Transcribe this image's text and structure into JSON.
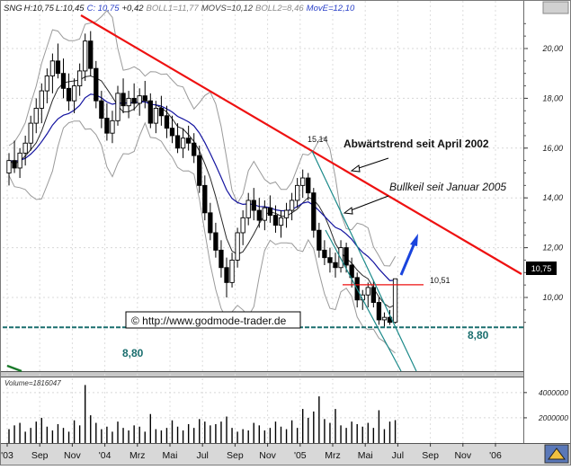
{
  "header": {
    "symbol": "SNG",
    "high_label": "H:10,75",
    "low_label": "L:10,45",
    "close_label": "C: 10,75",
    "change_label": "+0,42",
    "boll1_label": "BOLL1=11,77",
    "movs_label": "MOVS=10,12",
    "boll2_label": "BOLL2=8,46",
    "move_label": "MovE=12,10"
  },
  "colors": {
    "candle_body": "#000000",
    "bollinger": "#9a9a9a",
    "movs": "#2a2a2a",
    "move": "#1414a0",
    "trendline": "#ee1111",
    "bullwedge": "#1c8a8a",
    "resistance": "#ee1111",
    "support": "#1a6e6e",
    "arrow": "#1a44dd"
  },
  "chart_data": [
    {
      "type": "candlestick",
      "title": "",
      "x_ticks": [
        "'03",
        "Sep",
        "Nov",
        "'04",
        "Mrz",
        "Mai",
        "Jul",
        "Sep",
        "Nov",
        "'05",
        "Mrz",
        "Mai",
        "Jul",
        "Sep",
        "Nov",
        "'06"
      ],
      "y_ticks": [
        "20,00",
        "18,00",
        "16,00",
        "14,00",
        "12,00",
        "10,00"
      ],
      "ylim": [
        8.4,
        21.0
      ],
      "last_price_label": "10,75",
      "annotations": {
        "high_label": "15,14",
        "resistance_label": "10,51",
        "support_label_left": "8,80",
        "support_label_right": "8,80",
        "trend_label": "Abwärtstrend seit April 2002",
        "wedge_label": "Bullkeil seit Januar 2005",
        "source_label": "© http://www.godmode-trader.de"
      },
      "support_level": 8.8,
      "resistance_level": 10.51,
      "candles": [
        {
          "o": 15.0,
          "h": 15.8,
          "l": 14.5,
          "c": 15.5
        },
        {
          "o": 15.5,
          "h": 16.3,
          "l": 15.0,
          "c": 15.2
        },
        {
          "o": 15.2,
          "h": 16.0,
          "l": 14.8,
          "c": 15.8
        },
        {
          "o": 15.8,
          "h": 16.5,
          "l": 15.3,
          "c": 16.2
        },
        {
          "o": 16.2,
          "h": 17.3,
          "l": 15.9,
          "c": 17.0
        },
        {
          "o": 17.0,
          "h": 18.0,
          "l": 16.6,
          "c": 17.6
        },
        {
          "o": 17.6,
          "h": 18.6,
          "l": 17.0,
          "c": 18.3
        },
        {
          "o": 18.3,
          "h": 19.2,
          "l": 17.8,
          "c": 18.9
        },
        {
          "o": 18.9,
          "h": 19.8,
          "l": 18.2,
          "c": 19.5
        },
        {
          "o": 19.5,
          "h": 20.2,
          "l": 18.8,
          "c": 19.0
        },
        {
          "o": 19.0,
          "h": 19.6,
          "l": 18.0,
          "c": 18.4
        },
        {
          "o": 18.4,
          "h": 19.0,
          "l": 17.5,
          "c": 17.9
        },
        {
          "o": 17.9,
          "h": 18.8,
          "l": 17.4,
          "c": 18.5
        },
        {
          "o": 18.5,
          "h": 19.4,
          "l": 18.1,
          "c": 19.1
        },
        {
          "o": 19.1,
          "h": 20.6,
          "l": 18.7,
          "c": 20.3
        },
        {
          "o": 20.3,
          "h": 20.7,
          "l": 18.9,
          "c": 19.2
        },
        {
          "o": 19.2,
          "h": 19.5,
          "l": 17.6,
          "c": 17.9
        },
        {
          "o": 17.9,
          "h": 18.3,
          "l": 16.8,
          "c": 17.2
        },
        {
          "o": 17.2,
          "h": 17.8,
          "l": 16.3,
          "c": 16.6
        },
        {
          "o": 16.6,
          "h": 17.5,
          "l": 16.2,
          "c": 17.1
        },
        {
          "o": 17.1,
          "h": 18.5,
          "l": 16.9,
          "c": 18.2
        },
        {
          "o": 18.2,
          "h": 18.8,
          "l": 17.4,
          "c": 17.7
        },
        {
          "o": 17.7,
          "h": 18.3,
          "l": 17.2,
          "c": 18.0
        },
        {
          "o": 18.0,
          "h": 18.6,
          "l": 17.5,
          "c": 17.8
        },
        {
          "o": 17.8,
          "h": 18.4,
          "l": 17.3,
          "c": 18.1
        },
        {
          "o": 18.1,
          "h": 18.7,
          "l": 17.6,
          "c": 17.9
        },
        {
          "o": 17.9,
          "h": 18.2,
          "l": 16.8,
          "c": 17.0
        },
        {
          "o": 17.0,
          "h": 17.9,
          "l": 16.6,
          "c": 17.6
        },
        {
          "o": 17.6,
          "h": 18.1,
          "l": 16.9,
          "c": 17.3
        },
        {
          "o": 17.3,
          "h": 17.7,
          "l": 16.4,
          "c": 16.8
        },
        {
          "o": 16.8,
          "h": 17.3,
          "l": 16.2,
          "c": 16.5
        },
        {
          "o": 16.5,
          "h": 17.0,
          "l": 15.8,
          "c": 16.0
        },
        {
          "o": 16.0,
          "h": 16.8,
          "l": 15.6,
          "c": 16.4
        },
        {
          "o": 16.4,
          "h": 16.9,
          "l": 15.9,
          "c": 16.2
        },
        {
          "o": 16.2,
          "h": 16.6,
          "l": 15.4,
          "c": 15.7
        },
        {
          "o": 15.7,
          "h": 16.1,
          "l": 14.2,
          "c": 14.5
        },
        {
          "o": 14.5,
          "h": 14.9,
          "l": 13.1,
          "c": 13.4
        },
        {
          "o": 13.4,
          "h": 13.8,
          "l": 12.3,
          "c": 12.6
        },
        {
          "o": 12.6,
          "h": 13.0,
          "l": 11.6,
          "c": 11.9
        },
        {
          "o": 11.9,
          "h": 12.3,
          "l": 10.8,
          "c": 11.2
        },
        {
          "o": 11.2,
          "h": 11.6,
          "l": 10.0,
          "c": 10.6
        },
        {
          "o": 10.6,
          "h": 11.8,
          "l": 10.4,
          "c": 11.5
        },
        {
          "o": 11.5,
          "h": 12.8,
          "l": 11.2,
          "c": 12.6
        },
        {
          "o": 12.6,
          "h": 13.5,
          "l": 12.1,
          "c": 13.2
        },
        {
          "o": 13.2,
          "h": 14.2,
          "l": 12.9,
          "c": 13.9
        },
        {
          "o": 13.9,
          "h": 14.4,
          "l": 13.1,
          "c": 13.5
        },
        {
          "o": 13.5,
          "h": 14.0,
          "l": 12.8,
          "c": 13.1
        },
        {
          "o": 13.1,
          "h": 13.9,
          "l": 12.7,
          "c": 13.6
        },
        {
          "o": 13.6,
          "h": 14.1,
          "l": 13.0,
          "c": 13.3
        },
        {
          "o": 13.3,
          "h": 13.7,
          "l": 12.6,
          "c": 12.9
        },
        {
          "o": 12.9,
          "h": 13.5,
          "l": 12.4,
          "c": 13.2
        },
        {
          "o": 13.2,
          "h": 13.8,
          "l": 12.8,
          "c": 13.5
        },
        {
          "o": 13.5,
          "h": 14.2,
          "l": 13.1,
          "c": 13.9
        },
        {
          "o": 13.9,
          "h": 14.8,
          "l": 13.6,
          "c": 14.5
        },
        {
          "o": 14.5,
          "h": 15.14,
          "l": 14.0,
          "c": 14.8
        },
        {
          "o": 14.8,
          "h": 15.0,
          "l": 13.9,
          "c": 14.2
        },
        {
          "o": 14.2,
          "h": 14.4,
          "l": 12.4,
          "c": 12.7
        },
        {
          "o": 12.7,
          "h": 13.0,
          "l": 11.6,
          "c": 11.9
        },
        {
          "o": 11.9,
          "h": 12.3,
          "l": 11.3,
          "c": 11.6
        },
        {
          "o": 11.6,
          "h": 12.0,
          "l": 11.0,
          "c": 11.4
        },
        {
          "o": 11.4,
          "h": 11.8,
          "l": 10.8,
          "c": 11.2
        },
        {
          "o": 11.2,
          "h": 12.3,
          "l": 11.0,
          "c": 12.0
        },
        {
          "o": 12.0,
          "h": 12.2,
          "l": 11.0,
          "c": 11.3
        },
        {
          "o": 11.3,
          "h": 11.6,
          "l": 10.4,
          "c": 10.8
        },
        {
          "o": 10.8,
          "h": 11.0,
          "l": 9.6,
          "c": 9.9
        },
        {
          "o": 9.9,
          "h": 10.3,
          "l": 9.5,
          "c": 10.1
        },
        {
          "o": 10.1,
          "h": 10.6,
          "l": 9.6,
          "c": 10.4
        },
        {
          "o": 10.4,
          "h": 10.7,
          "l": 9.6,
          "c": 9.8
        },
        {
          "o": 9.8,
          "h": 10.0,
          "l": 8.9,
          "c": 9.1
        },
        {
          "o": 9.1,
          "h": 9.4,
          "l": 8.8,
          "c": 9.2
        },
        {
          "o": 9.2,
          "h": 9.5,
          "l": 8.9,
          "c": 9.0
        },
        {
          "o": 9.0,
          "h": 10.75,
          "l": 8.95,
          "c": 10.75
        }
      ]
    },
    {
      "type": "bar",
      "title": "Volume=1816047",
      "y_ticks": [
        "4000000",
        "2000000"
      ],
      "ylim": [
        0,
        5200000
      ],
      "values": [
        1100000,
        1400000,
        1600000,
        900000,
        1200000,
        1700000,
        2000000,
        1300000,
        1000000,
        1500000,
        1200000,
        900000,
        1800000,
        1400000,
        4600000,
        2200000,
        1600000,
        1100000,
        1300000,
        900000,
        1700000,
        1200000,
        1000000,
        1400000,
        1300000,
        900000,
        2300000,
        1100000,
        1000000,
        1200000,
        1800000,
        1300000,
        1000000,
        1500000,
        1200000,
        1900000,
        1700000,
        1400000,
        1500000,
        1700000,
        2100000,
        1200000,
        900000,
        1100000,
        1000000,
        1600000,
        1400000,
        1000000,
        1200000,
        1700000,
        1300000,
        1100000,
        1800000,
        1200000,
        2700000,
        2000000,
        2500000,
        3700000,
        1900000,
        1600000,
        2700000,
        1400000,
        1200000,
        1700000,
        1500000,
        1300000,
        1600000,
        1200000,
        2600000,
        1100000,
        1700000,
        1816047
      ]
    }
  ]
}
